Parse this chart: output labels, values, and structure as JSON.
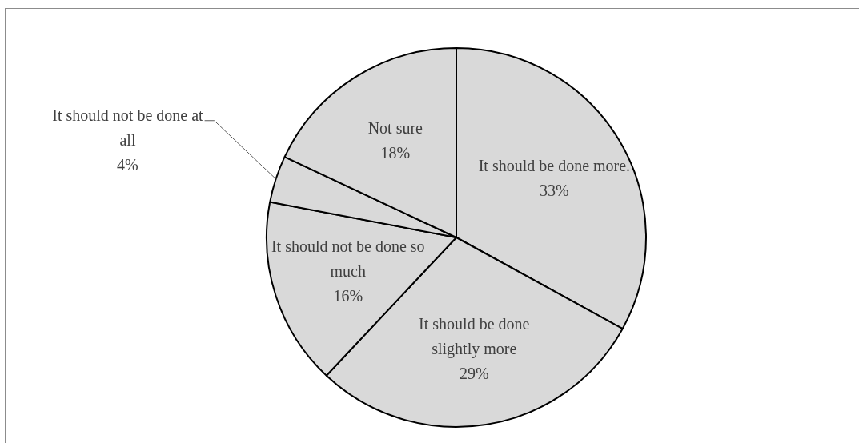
{
  "chart_data": {
    "type": "pie",
    "categories": [
      "It should be done more.",
      "It should be done slightly more",
      "It should not be done so much",
      "It should not be done at all",
      "Not sure"
    ],
    "values": [
      33,
      29,
      16,
      4,
      18
    ],
    "value_labels": [
      "33%",
      "29%",
      "16%",
      "4%",
      "18%"
    ],
    "colors": [
      "#d9d9d9",
      "#d9d9d9",
      "#d9d9d9",
      "#d9d9d9",
      "#d9d9d9"
    ]
  }
}
